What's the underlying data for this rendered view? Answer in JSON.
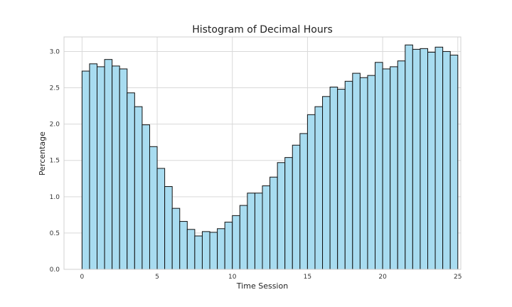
{
  "chart_data": {
    "type": "bar",
    "title": "Histogram of Decimal Hours",
    "xlabel": "Time Session",
    "ylabel": "Percentage",
    "xlim": [
      -1.2,
      25.2
    ],
    "ylim": [
      0,
      3.2
    ],
    "xticks": [
      0,
      5,
      10,
      15,
      20,
      25
    ],
    "yticks": [
      0.0,
      0.5,
      1.0,
      1.5,
      2.0,
      2.5,
      3.0
    ],
    "xtick_labels": [
      "0",
      "5",
      "10",
      "15",
      "20",
      "25"
    ],
    "ytick_labels": [
      "0.0",
      "0.5",
      "1.0",
      "1.5",
      "2.0",
      "2.5",
      "3.0"
    ],
    "grid": true,
    "bin_start": 0,
    "bin_width": 0.5,
    "values": [
      2.73,
      2.83,
      2.79,
      2.89,
      2.8,
      2.76,
      2.43,
      2.24,
      1.99,
      1.69,
      1.39,
      1.14,
      0.84,
      0.66,
      0.55,
      0.46,
      0.52,
      0.51,
      0.56,
      0.65,
      0.74,
      0.88,
      1.05,
      1.05,
      1.15,
      1.27,
      1.47,
      1.54,
      1.71,
      1.87,
      2.13,
      2.24,
      2.38,
      2.51,
      2.48,
      2.59,
      2.7,
      2.64,
      2.67,
      2.85,
      2.76,
      2.79,
      2.87,
      3.09,
      3.03,
      3.04,
      2.99,
      3.06,
      3.0,
      2.95
    ],
    "colors": {
      "bar_fill": "#a8dcf0",
      "bar_edge": "#111111",
      "grid": "#d9d9d9",
      "frame": "#d0d0d0"
    }
  }
}
